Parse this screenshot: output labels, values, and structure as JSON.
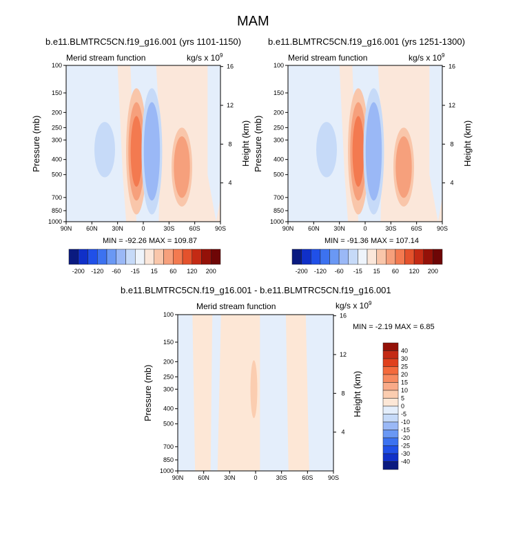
{
  "figure_title": "MAM",
  "panels": [
    {
      "title": "b.e11.BLMTRC5CN.f19_g16.001 (yrs 1101-1150)",
      "left_label": "Merid stream function",
      "units": "kg/s x 10",
      "units_exp": "9",
      "ylabel": "Pressure (mb)",
      "ylabel_right": "Height (km)",
      "minmax": "MIN = -92.26  MAX = 109.87"
    },
    {
      "title": "b.e11.BLMTRC5CN.f19_g16.001 (yrs 1251-1300)",
      "left_label": "Merid stream function",
      "units": "kg/s x 10",
      "units_exp": "9",
      "ylabel": "Pressure (mb)",
      "ylabel_right": "Height (km)",
      "minmax": "MIN = -91.36  MAX = 107.14"
    },
    {
      "title": "b.e11.BLMTRC5CN.f19_g16.001 - b.e11.BLMTRC5CN.f19_g16.001",
      "left_label": "Merid stream function",
      "units": "kg/s x 10",
      "units_exp": "9",
      "ylabel": "Pressure (mb)",
      "ylabel_right": "Height (km)",
      "minmax": "MIN =  -2.19  MAX =   6.85"
    }
  ],
  "colorbar_top": {
    "levels": [
      "-200",
      "-120",
      "-60",
      "-15",
      "15",
      "60",
      "120",
      "200"
    ],
    "colors": [
      "#0a1a80",
      "#1030c8",
      "#2050e8",
      "#3c72f0",
      "#6a98f4",
      "#9ab8f6",
      "#c6daf8",
      "#eef4fb",
      "#fbe7da",
      "#f9c6aa",
      "#f6a07c",
      "#f37a50",
      "#e4522c",
      "#c42a14",
      "#941108",
      "#6e0606"
    ]
  },
  "colorbar_diff": {
    "levels": [
      "40",
      "30",
      "25",
      "20",
      "15",
      "10",
      "5",
      "0",
      "-5",
      "-10",
      "-15",
      "-20",
      "-25",
      "-30",
      "-40"
    ],
    "colors": [
      "#941108",
      "#c42a14",
      "#e0401c",
      "#f46a3c",
      "#f78a60",
      "#f9aa88",
      "#fbcdb0",
      "#fde7d6",
      "#e4eefb",
      "#c6daf8",
      "#9ab8f6",
      "#6a98f4",
      "#3c72f0",
      "#2050e8",
      "#1030c8",
      "#0a1a80"
    ]
  },
  "chart_data": [
    {
      "type": "heatmap",
      "title": "b.e11.BLMTRC5CN.f19_g16.001 (yrs 1101-1150)",
      "ylabel": "Pressure (mb)",
      "ylabel_right": "Height (km)",
      "x_ticks": [
        "90N",
        "60N",
        "30N",
        "0",
        "30S",
        "60S",
        "90S"
      ],
      "y_ticks": [
        "100",
        "150",
        "200",
        "250",
        "300",
        "400",
        "500",
        "700",
        "850",
        "1000"
      ],
      "y_ticks_right": [
        "16",
        "12",
        "8",
        "4"
      ],
      "xlim": [
        90,
        -90
      ],
      "ylim": [
        1000,
        100
      ],
      "min": -92.26,
      "max": 109.87,
      "contour_levels": [
        -200,
        -120,
        -60,
        -15,
        15,
        60,
        120,
        200
      ],
      "features": [
        {
          "lat": 45,
          "p_top": 230,
          "p_bottom": 520,
          "max_level": -15
        },
        {
          "lat": 8,
          "p_top": 140,
          "p_bottom": 900,
          "max_level": 120
        },
        {
          "lat": -10,
          "p_top": 140,
          "p_bottom": 900,
          "max_level": -60
        },
        {
          "lat": -45,
          "p_top": 250,
          "p_bottom": 800,
          "max_level": 60
        }
      ]
    },
    {
      "type": "heatmap",
      "title": "b.e11.BLMTRC5CN.f19_g16.001 (yrs 1251-1300)",
      "ylabel": "Pressure (mb)",
      "ylabel_right": "Height (km)",
      "x_ticks": [
        "90N",
        "60N",
        "30N",
        "0",
        "30S",
        "60S",
        "90S"
      ],
      "y_ticks": [
        "100",
        "150",
        "200",
        "250",
        "300",
        "400",
        "500",
        "700",
        "850",
        "1000"
      ],
      "y_ticks_right": [
        "16",
        "12",
        "8",
        "4"
      ],
      "xlim": [
        90,
        -90
      ],
      "ylim": [
        1000,
        100
      ],
      "min": -91.36,
      "max": 107.14,
      "contour_levels": [
        -200,
        -120,
        -60,
        -15,
        15,
        60,
        120,
        200
      ],
      "features": [
        {
          "lat": 45,
          "p_top": 230,
          "p_bottom": 520,
          "max_level": -15
        },
        {
          "lat": 8,
          "p_top": 140,
          "p_bottom": 900,
          "max_level": 120
        },
        {
          "lat": -10,
          "p_top": 140,
          "p_bottom": 900,
          "max_level": -60
        },
        {
          "lat": -45,
          "p_top": 250,
          "p_bottom": 800,
          "max_level": 60
        }
      ]
    },
    {
      "type": "heatmap",
      "title": "b.e11.BLMTRC5CN.f19_g16.001 - b.e11.BLMTRC5CN.f19_g16.001",
      "ylabel": "Pressure (mb)",
      "ylabel_right": "Height (km)",
      "x_ticks": [
        "90N",
        "60N",
        "30N",
        "0",
        "30S",
        "60S",
        "90S"
      ],
      "y_ticks": [
        "100",
        "150",
        "200",
        "250",
        "300",
        "400",
        "500",
        "700",
        "850",
        "1000"
      ],
      "y_ticks_right": [
        "16",
        "12",
        "8",
        "4"
      ],
      "xlim": [
        90,
        -90
      ],
      "ylim": [
        1000,
        100
      ],
      "min": -2.19,
      "max": 6.85,
      "contour_levels": [
        -40,
        -30,
        -25,
        -20,
        -15,
        -10,
        -5,
        0,
        5,
        10,
        15,
        20,
        25,
        30,
        40
      ]
    }
  ]
}
